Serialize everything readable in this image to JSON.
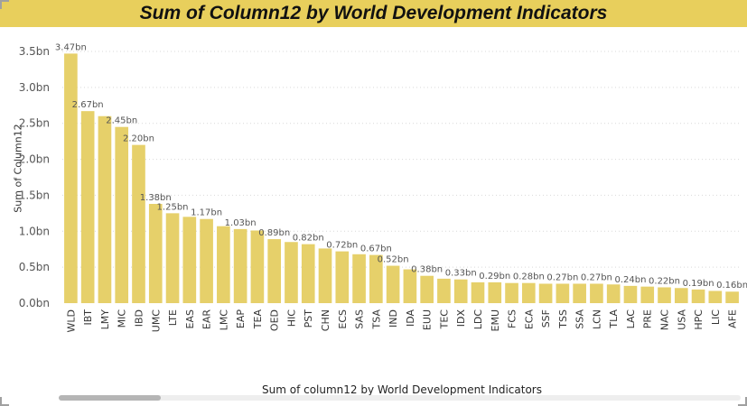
{
  "title": "Sum of Column12 by World Development Indicators",
  "xlabel": "Sum of column12 by World Development Indicators",
  "colors": {
    "title_bg": "#e8cf5c",
    "bar": "#e6d06a",
    "grid": "#d9d9d9"
  },
  "chart_data": {
    "type": "bar",
    "title": "Sum of Column12 by World Development Indicators",
    "xlabel": "Sum of column12 by World Development Indicators",
    "ylabel": "Sum of Column12",
    "ylim": [
      0,
      3.5
    ],
    "y_unit": "bn",
    "yticks": [
      "0.0bn",
      "0.5bn",
      "1.0bn",
      "1.5bn",
      "2.0bn",
      "2.5bn",
      "3.0bn",
      "3.5bn"
    ],
    "grid": true,
    "categories": [
      "WLD",
      "IBT",
      "LMY",
      "MIC",
      "IBD",
      "UMC",
      "LTE",
      "EAS",
      "EAR",
      "LMC",
      "EAP",
      "TEA",
      "OED",
      "HIC",
      "PST",
      "CHN",
      "ECS",
      "SAS",
      "TSA",
      "IND",
      "IDA",
      "EUU",
      "TEC",
      "IDX",
      "LDC",
      "EMU",
      "FCS",
      "ECA",
      "SSF",
      "TSS",
      "SSA",
      "LCN",
      "TLA",
      "LAC",
      "PRE",
      "NAC",
      "USA",
      "HPC",
      "LIC",
      "AFE"
    ],
    "values": [
      3.47,
      2.67,
      2.6,
      2.45,
      2.2,
      1.38,
      1.25,
      1.2,
      1.17,
      1.07,
      1.03,
      1.01,
      0.89,
      0.85,
      0.82,
      0.76,
      0.72,
      0.68,
      0.67,
      0.52,
      0.47,
      0.38,
      0.34,
      0.33,
      0.29,
      0.29,
      0.28,
      0.28,
      0.27,
      0.27,
      0.27,
      0.27,
      0.26,
      0.24,
      0.23,
      0.22,
      0.21,
      0.19,
      0.17,
      0.16
    ],
    "data_labels": [
      "3.47bn",
      "2.67bn",
      "",
      "2.45bn",
      "2.20bn",
      "1.38bn",
      "1.25bn",
      "",
      "1.17bn",
      "",
      "1.03bn",
      "",
      "0.89bn",
      "",
      "0.82bn",
      "",
      "0.72bn",
      "",
      "0.67bn",
      "0.52bn",
      "",
      "0.38bn",
      "",
      "0.33bn",
      "",
      "0.29bn",
      "",
      "0.28bn",
      "",
      "0.27bn",
      "",
      "0.27bn",
      "",
      "0.24bn",
      "",
      "0.22bn",
      "",
      "0.19bn",
      "",
      "0.16bn"
    ]
  }
}
